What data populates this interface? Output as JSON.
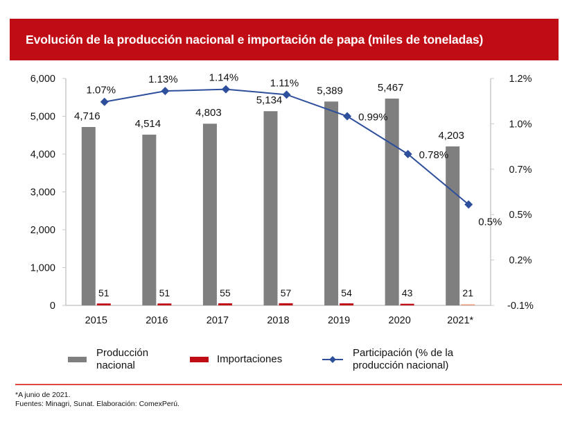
{
  "header": {
    "title": "Evolución de la producción nacional e importación de papa (miles de toneladas)"
  },
  "chart_data": {
    "type": "bar",
    "title": "Evolución de la producción nacional e importación de papa (miles de toneladas)",
    "categories": [
      "2015",
      "2016",
      "2017",
      "2018",
      "2019",
      "2020",
      "2021*"
    ],
    "series": [
      {
        "name": "Producción nacional",
        "type": "bar",
        "axis": "left",
        "color": "#7f7f7f",
        "values": [
          4716,
          4514,
          4803,
          5134,
          5389,
          5467,
          4203
        ],
        "labels": [
          "4,716",
          "4,514",
          "4,803",
          "5,134",
          "5,389",
          "5,467",
          "4,203"
        ]
      },
      {
        "name": "Importaciones",
        "type": "bar",
        "axis": "left",
        "color": "#c00d15",
        "values": [
          51,
          51,
          55,
          57,
          54,
          43,
          21
        ],
        "labels": [
          "51",
          "51",
          "55",
          "57",
          "54",
          "43",
          "21"
        ]
      },
      {
        "name": "Participación (% de la producción nacional)",
        "type": "line",
        "axis": "right",
        "color": "#2e4f9b",
        "values": [
          1.07,
          1.13,
          1.14,
          1.11,
          0.99,
          0.78,
          0.5
        ],
        "labels": [
          "1.07%",
          "1.13%",
          "1.14%",
          "1.11%",
          "0.99%",
          "0.78%",
          "0.5%"
        ]
      }
    ],
    "left_axis": {
      "ylim": [
        0,
        6000
      ],
      "ticks": [
        0,
        1000,
        2000,
        3000,
        4000,
        5000,
        6000
      ],
      "tick_labels": [
        "0",
        "1,000",
        "2,000",
        "3,000",
        "4,000",
        "5,000",
        "6,000"
      ]
    },
    "right_axis": {
      "ylim": [
        -0.06,
        1.2
      ],
      "tick_labels": [
        "-0.1%",
        "0.2%",
        "0.5%",
        "0.7%",
        "1.0%",
        "1.2%"
      ]
    },
    "xlabel": "",
    "ylabel": "",
    "grid": false,
    "legend_position": "bottom"
  },
  "legend": {
    "production_line1": "Producción",
    "production_line2": "nacional",
    "imports": "Importaciones",
    "share_line1": "Participación (% de la",
    "share_line2": "producción nacional)"
  },
  "footer": {
    "note": "*A junio de 2021.",
    "sources": "Fuentes: Minagri, Sunat. Elaboración: ComexPerú."
  }
}
